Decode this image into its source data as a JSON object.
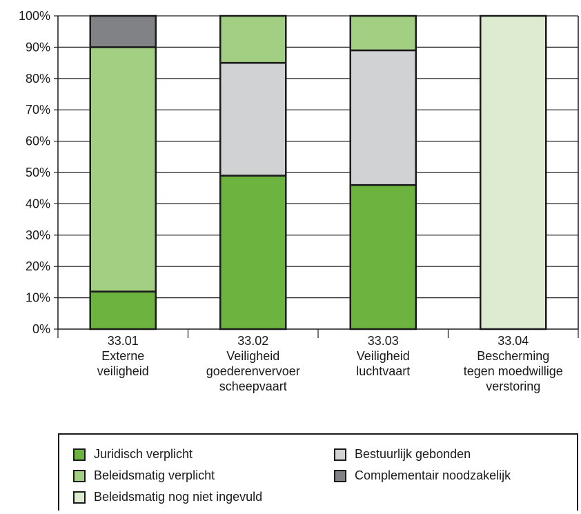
{
  "chart_data": {
    "type": "bar",
    "stacked": true,
    "categories": [
      [
        "33.01",
        "Externe",
        "veiligheid"
      ],
      [
        "33.02",
        "Veiligheid",
        "goederenvervoer",
        "scheepvaart"
      ],
      [
        "33.03",
        "Veiligheid",
        "luchtvaart"
      ],
      [
        "33.04",
        "Bescherming",
        "tegen moedwillige",
        "verstoring"
      ]
    ],
    "series": [
      {
        "name": "Juridisch verplicht",
        "color": "#6cb33f",
        "values": [
          12,
          49,
          46,
          0
        ]
      },
      {
        "name": "Bestuurlijk gebonden",
        "color": "#d0d2d3",
        "values": [
          0,
          36,
          43,
          0
        ]
      },
      {
        "name": "Beleidsmatig verplicht",
        "color": "#a3cf83",
        "values": [
          78,
          15,
          11,
          0
        ]
      },
      {
        "name": "Complementair noodzakelijk",
        "color": "#808285",
        "values": [
          10,
          0,
          0,
          0
        ]
      },
      {
        "name": "Beleidsmatig nog niet ingevuld",
        "color": "#ddecd0",
        "values": [
          0,
          0,
          0,
          100
        ]
      }
    ],
    "ylim": [
      0,
      100
    ],
    "yticks": [
      "0%",
      "10%",
      "20%",
      "30%",
      "40%",
      "50%",
      "60%",
      "70%",
      "80%",
      "90%",
      "100%"
    ],
    "grid": true,
    "legend_placement": "bottom"
  },
  "legend": {
    "col1": [
      {
        "label": "Juridisch verplicht",
        "color": "#6cb33f"
      },
      {
        "label": "Beleidsmatig verplicht",
        "color": "#a3cf83"
      },
      {
        "label": "Beleidsmatig nog niet ingevuld",
        "color": "#ddecd0"
      }
    ],
    "col2": [
      {
        "label": "Bestuurlijk gebonden",
        "color": "#d0d2d3"
      },
      {
        "label": "Complementair noodzakelijk",
        "color": "#808285"
      }
    ]
  }
}
